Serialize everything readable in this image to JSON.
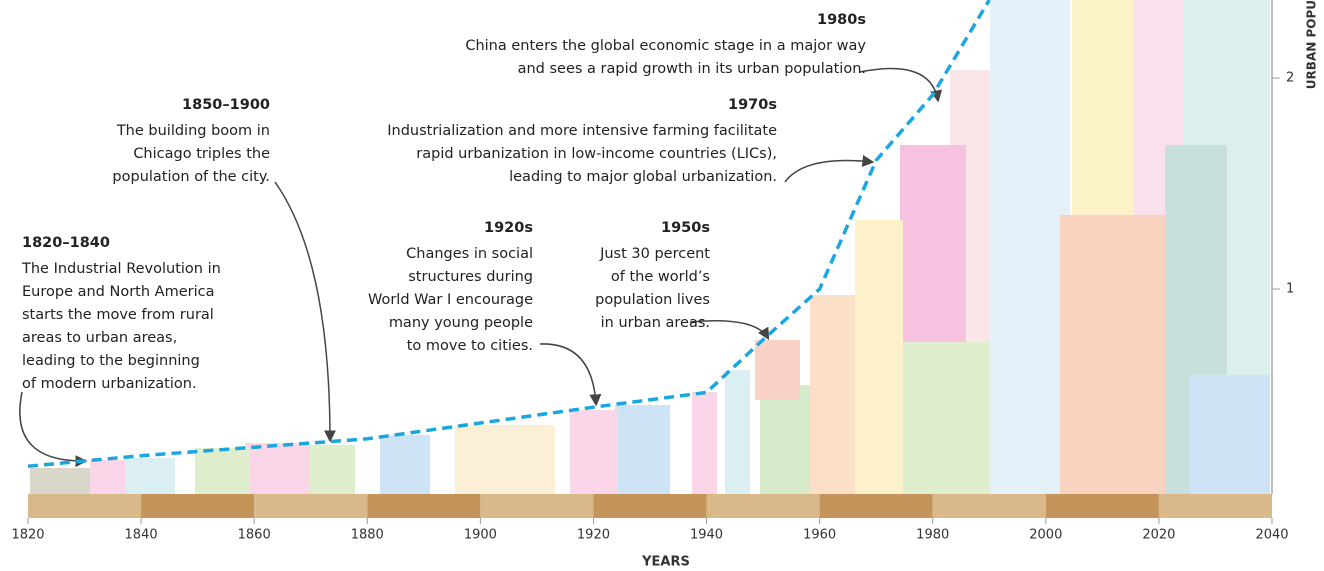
{
  "chart_data": {
    "type": "line",
    "x_label": "YEARS",
    "y_label": "URBAN POPU",
    "x": [
      1820,
      1840,
      1860,
      1880,
      1920,
      1940,
      1950,
      1960,
      1970,
      1980,
      1990
    ],
    "series": [
      {
        "color": "#1aa7e0",
        "values": [
          0.16,
          0.21,
          0.25,
          0.29,
          0.44,
          0.51,
          0.76,
          1.0,
          1.61,
          1.92,
          2.37
        ]
      }
    ],
    "xlim": [
      1820,
      2040
    ],
    "xticks": [
      1820,
      1840,
      1860,
      1880,
      1900,
      1920,
      1940,
      1960,
      1980,
      2000,
      2020,
      2040
    ],
    "ylim": [
      0,
      2.37
    ],
    "yticks": [
      1,
      2
    ],
    "annotations": [
      {
        "title": "1980s",
        "lines": [
          "China enters the global economic stage in a major way",
          "and sees a rapid growth in its urban population."
        ]
      },
      {
        "title": "1850–1900",
        "lines": [
          "The building boom in",
          "Chicago triples the",
          "population of the city."
        ]
      },
      {
        "title": "1970s",
        "lines": [
          "Industrialization and more intensive farming facilitate",
          "rapid urbanization in low-income countries (LICs),",
          "leading to major global urbanization."
        ]
      },
      {
        "title": "1820–1840",
        "lines": [
          "The Industrial Revolution in",
          "Europe and North America",
          "starts the move from rural",
          "areas to urban areas,",
          "leading to the beginning",
          "of modern urbanization."
        ]
      },
      {
        "title": "1920s",
        "lines": [
          "Changes in social",
          "structures during",
          "World War I encourage",
          "many young people",
          "to move to cities."
        ]
      },
      {
        "title": "1950s",
        "lines": [
          "Just 30 percent",
          "of the world’s",
          "population lives",
          "in urban areas."
        ]
      }
    ]
  }
}
